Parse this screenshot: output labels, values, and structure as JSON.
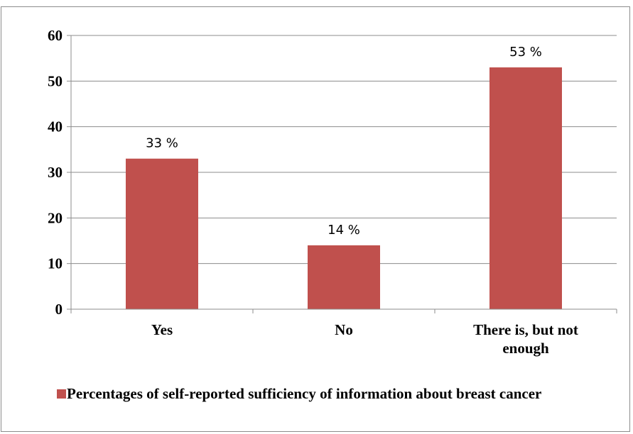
{
  "chart_data": {
    "type": "bar",
    "categories": [
      "Yes",
      "No",
      "There is, but not enough"
    ],
    "category_lines": [
      [
        "Yes"
      ],
      [
        "No"
      ],
      [
        "There is, but not",
        "enough"
      ]
    ],
    "series": [
      {
        "name": "Percentages of self-reported sufficiency of information about breast cancer",
        "values": [
          33,
          14,
          53
        ],
        "data_labels": [
          "33 %",
          "14 %",
          "53 %"
        ],
        "color": "#c0504d"
      }
    ],
    "title": "",
    "xlabel": "",
    "ylabel": "",
    "ylim": [
      0,
      60
    ],
    "yticks": [
      0,
      10,
      20,
      30,
      40,
      50,
      60
    ],
    "grid": true,
    "legend_position": "bottom"
  }
}
